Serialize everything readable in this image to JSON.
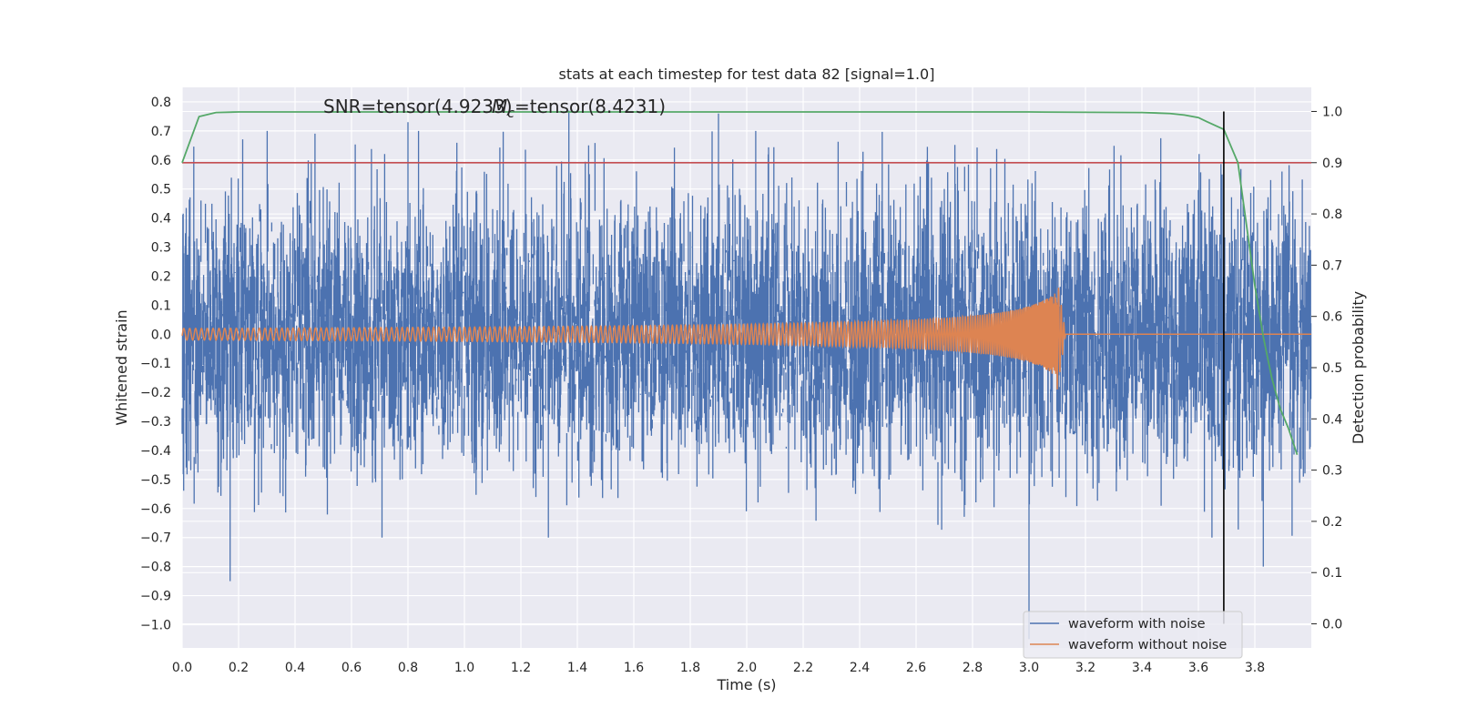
{
  "chart_data": {
    "type": "line",
    "title": "stats at each timestep for test data 82 [signal=1.0]",
    "xlabel": "Time (s)",
    "ylabel": "Whitened strain",
    "y2label": "Detection probability",
    "xlim": [
      0.0,
      4.0
    ],
    "ylim": [
      -1.08,
      0.85
    ],
    "y2lim": [
      -0.047,
      1.047
    ],
    "xticks": [
      "0.0",
      "0.2",
      "0.4",
      "0.6",
      "0.8",
      "1.0",
      "1.2",
      "1.4",
      "1.6",
      "1.8",
      "2.0",
      "2.2",
      "2.4",
      "2.6",
      "2.8",
      "3.0",
      "3.2",
      "3.4",
      "3.6",
      "3.8"
    ],
    "yticks": [
      "0.8",
      "0.7",
      "0.6",
      "0.5",
      "0.4",
      "0.3",
      "0.2",
      "0.1",
      "0.0",
      "-0.1",
      "-0.2",
      "-0.3",
      "-0.4",
      "-0.5",
      "-0.6",
      "-0.7",
      "-0.8",
      "-0.9",
      "-1.0"
    ],
    "y2ticks": [
      "1.0",
      "0.9",
      "0.8",
      "0.7",
      "0.6",
      "0.5",
      "0.4",
      "0.3",
      "0.2",
      "0.1",
      "0.0"
    ],
    "grid": true,
    "legend_position": "lower-right",
    "annotations": {
      "snr": "SNR=tensor(4.9233)",
      "mc_prefix": "M",
      "mc_sub": "c",
      "mc_value": "=tensor(8.4231)"
    },
    "series": [
      {
        "name": "waveform with noise",
        "color": "#4c72b0",
        "axis": "left",
        "style": "noise-band",
        "t_range": [
          0.0,
          4.0
        ],
        "approx_envelope": [
          -0.55,
          0.55
        ],
        "notable_peaks": [
          {
            "x": 0.17,
            "y": -0.85
          },
          {
            "x": 0.8,
            "y": 0.73
          },
          {
            "x": 1.37,
            "y": 0.77
          },
          {
            "x": 1.9,
            "y": 0.76
          },
          {
            "x": 3.0,
            "y": -1.05
          },
          {
            "x": 3.83,
            "y": -0.8
          }
        ]
      },
      {
        "name": "waveform without noise",
        "color": "#dd8452",
        "axis": "left",
        "style": "chirp",
        "start_x": 0.0,
        "merger_x": 3.1,
        "end_x": 4.0,
        "start_amplitude": 0.02,
        "peak_amplitude": 0.14,
        "min_at_merger": -0.19,
        "post_merger_value": 0.0
      },
      {
        "color": "#55a868",
        "axis": "right",
        "x": [
          0.0,
          0.06,
          0.12,
          0.2,
          0.4,
          1.0,
          2.0,
          3.0,
          3.4,
          3.5,
          3.55,
          3.6,
          3.63,
          3.69,
          3.74,
          3.77,
          3.8,
          3.83,
          3.86,
          3.89,
          3.92,
          3.95
        ],
        "values": [
          0.9,
          0.99,
          0.998,
          0.999,
          0.999,
          0.999,
          0.999,
          0.999,
          0.998,
          0.996,
          0.993,
          0.988,
          0.98,
          0.965,
          0.9,
          0.78,
          0.66,
          0.56,
          0.48,
          0.42,
          0.38,
          0.33
        ]
      }
    ],
    "threshold": {
      "axis": "right",
      "value": 0.9,
      "color": "#c44e52"
    },
    "vline": {
      "x": 3.69,
      "color": "#000000"
    }
  }
}
